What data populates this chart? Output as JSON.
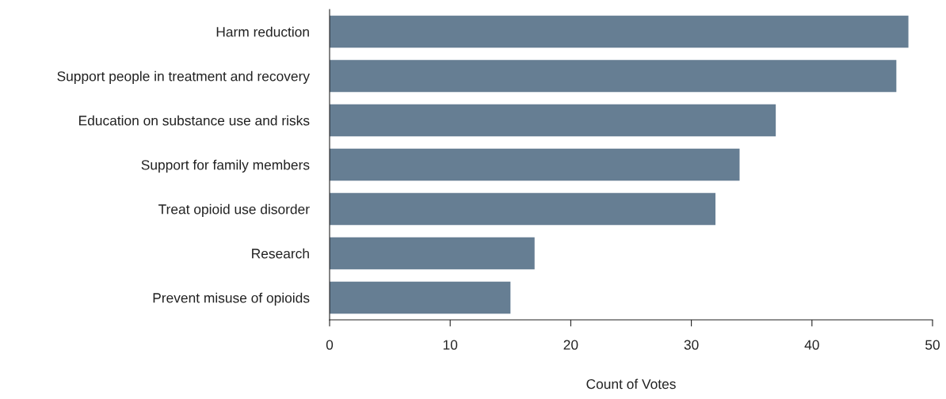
{
  "chart_data": {
    "type": "bar",
    "orientation": "horizontal",
    "categories": [
      "Harm reduction",
      "Support people in treatment and recovery",
      "Education on substance use and risks",
      "Support for family members",
      "Treat opioid use disorder",
      "Research",
      "Prevent misuse of opioids"
    ],
    "values": [
      48,
      47,
      37,
      34,
      32,
      17,
      15
    ],
    "color": "#667e93",
    "xlabel": "Count of Votes",
    "xlim": [
      0,
      50
    ],
    "xticks": [
      0,
      10,
      20,
      30,
      40,
      50
    ],
    "grid": false
  }
}
